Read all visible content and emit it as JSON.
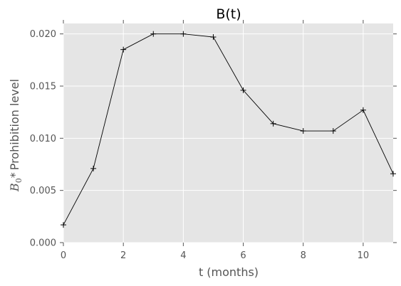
{
  "chart_data": {
    "type": "line",
    "title": "B(t)",
    "xlabel": "t (months)",
    "ylabel": {
      "math_base": "B",
      "math_sub": "0",
      "operator": "*",
      "text": "Prohibition level"
    },
    "xlim": [
      0,
      11
    ],
    "ylim": [
      0.0,
      0.021
    ],
    "xticks": [
      0,
      2,
      4,
      6,
      8,
      10
    ],
    "xtick_labels": [
      "0",
      "2",
      "4",
      "6",
      "8",
      "10"
    ],
    "yticks": [
      0.0,
      0.005,
      0.01,
      0.015,
      0.02
    ],
    "ytick_labels": [
      "0.000",
      "0.005",
      "0.010",
      "0.015",
      "0.020"
    ],
    "grid": true,
    "marker": "+",
    "series": [
      {
        "x": [
          0,
          1,
          2,
          3,
          4,
          5,
          6,
          7,
          8,
          9,
          10,
          11
        ],
        "y": [
          0.0017,
          0.0071,
          0.0185,
          0.02,
          0.02,
          0.0197,
          0.0146,
          0.0114,
          0.0107,
          0.0107,
          0.0127,
          0.0066
        ]
      }
    ]
  },
  "colors": {
    "plot_background": "#e5e5e5",
    "grid": "#ffffff",
    "line": "#000000",
    "tick_label": "#555555"
  }
}
